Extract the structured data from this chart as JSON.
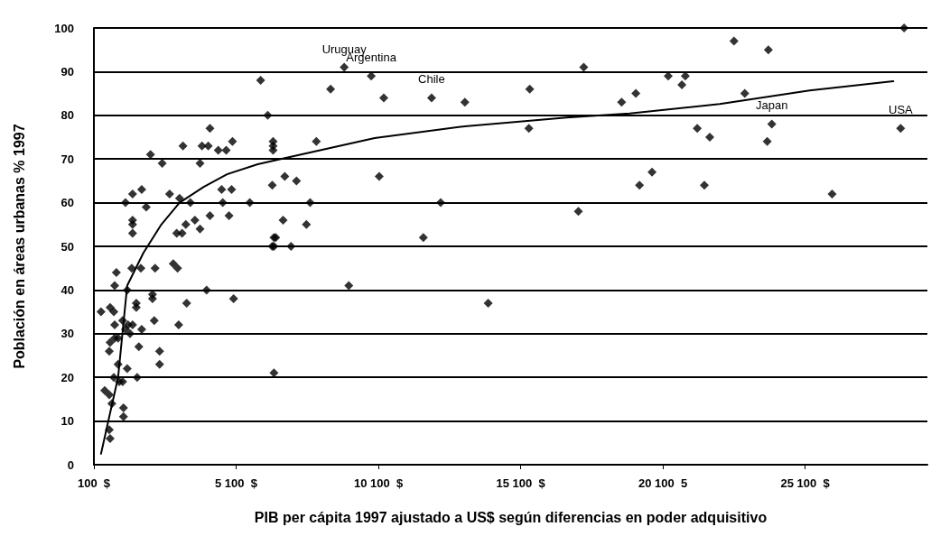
{
  "chart_data": {
    "type": "scatter",
    "xlabel": "PIB per cápita 1997 ajustado a US$ según diferencias en poder adquisitivo",
    "ylabel": "Población en áreas urbanas % 1997",
    "xlim": [
      100,
      29400
    ],
    "xticks": [
      {
        "value": 100,
        "label": "100  $"
      },
      {
        "value": 5100,
        "label": "5 100  $"
      },
      {
        "value": 10100,
        "label": "10 100  $"
      },
      {
        "value": 15100,
        "label": "15 100  $"
      },
      {
        "value": 20100,
        "label": "20 100  5"
      },
      {
        "value": 25100,
        "label": "25 100  $"
      }
    ],
    "ylim": [
      0,
      100
    ],
    "yticks": [
      0,
      10,
      20,
      30,
      40,
      50,
      60,
      70,
      80,
      90,
      100
    ],
    "grid": "y",
    "marker": "diamond",
    "series": [
      {
        "color": "#000000",
        "x": [
          5960,
          6210,
          6400,
          6400,
          6400,
          6370,
          2090,
          2500,
          3230,
          3830,
          3900,
          4120,
          4180,
          4470,
          4750,
          4970,
          1210,
          1460,
          1780,
          1940,
          2760,
          3110,
          3490,
          4590,
          4940,
          4630,
          4850,
          4180,
          5580,
          1460,
          1460,
          1460,
          3010,
          3200,
          3330,
          3650,
          3830,
          6430,
          6430,
          890,
          830,
          1270,
          1430,
          1750,
          2250,
          2890,
          3040,
          350,
          670,
          800,
          830,
          1110,
          1300,
          1460,
          1210,
          1370,
          1780,
          1590,
          1590,
          2160,
          2160,
          2220,
          3360,
          3080,
          4060,
          5010,
          670,
          830,
          950,
          640,
          1680,
          2410,
          2410,
          950,
          1270,
          1620,
          800,
          990,
          1110,
          480,
          640,
          730,
          1140,
          1140,
          640,
          670,
          6430,
          7920,
          8900,
          8420,
          9850,
          10290,
          11970,
          13140,
          15420,
          15390,
          10130,
          6810,
          7220,
          7700,
          12290,
          6750,
          7570,
          6490,
          6370,
          7030,
          11680,
          9060,
          13960,
          28580,
          22600,
          23810,
          17320,
          20290,
          20890,
          20770,
          19150,
          18650,
          22980,
          23930,
          23770,
          21310,
          21750,
          28460,
          19720,
          19280,
          21560,
          26050,
          17130
        ],
        "values": [
          88,
          80,
          74,
          73,
          72,
          64,
          71,
          69,
          73,
          69,
          73,
          73,
          77,
          72,
          72,
          74,
          60,
          62,
          63,
          59,
          62,
          61,
          60,
          63,
          63,
          60,
          57,
          57,
          60,
          56,
          55,
          53,
          53,
          53,
          55,
          56,
          54,
          50,
          52,
          44,
          41,
          40,
          45,
          45,
          45,
          46,
          45,
          35,
          36,
          35,
          32,
          33,
          32,
          32,
          31,
          30,
          31,
          37,
          36,
          39,
          38,
          33,
          37,
          32,
          40,
          38,
          28,
          29,
          29,
          26,
          27,
          26,
          23,
          23,
          22,
          20,
          20,
          19,
          19,
          17,
          16,
          14,
          13,
          11,
          8,
          6,
          21,
          74,
          91,
          86,
          89,
          84,
          84,
          83,
          86,
          77,
          66,
          66,
          65,
          60,
          60,
          56,
          55,
          52,
          50,
          50,
          52,
          41,
          37,
          100,
          97,
          95,
          91,
          89,
          89,
          87,
          85,
          83,
          85,
          78,
          74,
          77,
          75,
          77,
          67,
          64,
          64,
          62,
          58
        ]
      },
      {
        "type": "line",
        "color": "#000000",
        "marker": "none",
        "line_style": "solid",
        "x": [
          350,
          640,
          950,
          1270,
          1840,
          2470,
          3110,
          3960,
          4780,
          5860,
          6810,
          9970,
          13140,
          16720,
          18930,
          22100,
          25260,
          28200
        ],
        "values": [
          2.5,
          11,
          20,
          41,
          48.5,
          55,
          60,
          63.6,
          66.5,
          68.8,
          70.2,
          74.8,
          77.5,
          79.5,
          80.4,
          82.6,
          85.7,
          87.8
        ]
      }
    ],
    "annotations": [
      {
        "text": "Uruguay",
        "x": 8900,
        "y": 91
      },
      {
        "text": "Argentina",
        "x": 9850,
        "y": 89
      },
      {
        "text": "Chile",
        "x": 11970,
        "y": 84
      },
      {
        "text": "Japan",
        "x": 23930,
        "y": 78
      },
      {
        "text": "USA",
        "x": 28460,
        "y": 77
      }
    ]
  }
}
